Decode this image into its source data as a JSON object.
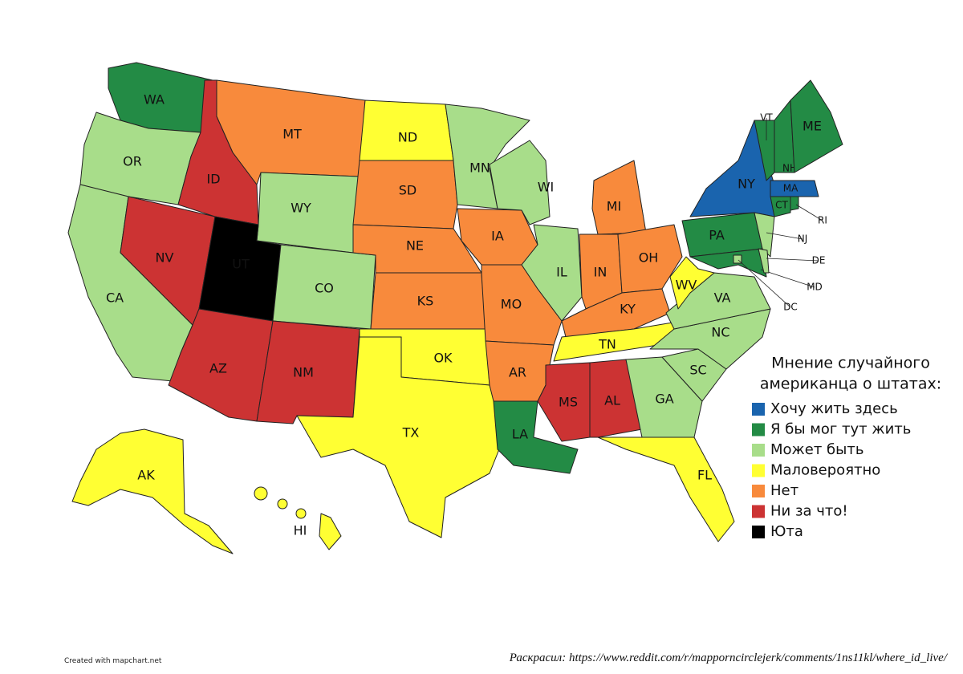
{
  "title_lines": [
    "Мнение случайного",
    "американца о штатах:"
  ],
  "legend": [
    {
      "label": "Хочу жить здесь",
      "color": "#1a64ae"
    },
    {
      "label": "Я бы мог тут жить",
      "color": "#238b45"
    },
    {
      "label": "Может быть",
      "color": "#a8dd8a"
    },
    {
      "label": "Маловероятно",
      "color": "#ffff33"
    },
    {
      "label": "Нет",
      "color": "#f88a3c"
    },
    {
      "label": "Ни за что!",
      "color": "#cc3333"
    },
    {
      "label": "Юта",
      "color": "#000000"
    }
  ],
  "states": [
    {
      "label": "WA",
      "category": 1
    },
    {
      "label": "OR",
      "category": 2
    },
    {
      "label": "CA",
      "category": 2
    },
    {
      "label": "NV",
      "category": 5
    },
    {
      "label": "ID",
      "category": 5
    },
    {
      "label": "MT",
      "category": 4
    },
    {
      "label": "WY",
      "category": 2
    },
    {
      "label": "UT",
      "category": 6
    },
    {
      "label": "CO",
      "category": 2
    },
    {
      "label": "AZ",
      "category": 5
    },
    {
      "label": "NM",
      "category": 5
    },
    {
      "label": "ND",
      "category": 3
    },
    {
      "label": "SD",
      "category": 4
    },
    {
      "label": "NE",
      "category": 4
    },
    {
      "label": "KS",
      "category": 4
    },
    {
      "label": "OK",
      "category": 3
    },
    {
      "label": "TX",
      "category": 3
    },
    {
      "label": "MN",
      "category": 2
    },
    {
      "label": "IA",
      "category": 4
    },
    {
      "label": "MO",
      "category": 4
    },
    {
      "label": "AR",
      "category": 4
    },
    {
      "label": "LA",
      "category": 1
    },
    {
      "label": "WI",
      "category": 2
    },
    {
      "label": "IL",
      "category": 2
    },
    {
      "label": "MI",
      "category": 4
    },
    {
      "label": "IN",
      "category": 4
    },
    {
      "label": "OH",
      "category": 4
    },
    {
      "label": "KY",
      "category": 4
    },
    {
      "label": "TN",
      "category": 3
    },
    {
      "label": "MS",
      "category": 5
    },
    {
      "label": "AL",
      "category": 5
    },
    {
      "label": "GA",
      "category": 2
    },
    {
      "label": "FL",
      "category": 3
    },
    {
      "label": "SC",
      "category": 2
    },
    {
      "label": "NC",
      "category": 2
    },
    {
      "label": "VA",
      "category": 2
    },
    {
      "label": "WV",
      "category": 3
    },
    {
      "label": "PA",
      "category": 1
    },
    {
      "label": "NY",
      "category": 0
    },
    {
      "label": "NJ",
      "category": 2
    },
    {
      "label": "MD",
      "category": 1
    },
    {
      "label": "DE",
      "category": 2
    },
    {
      "label": "DC",
      "category": 2
    },
    {
      "label": "VT",
      "category": 1
    },
    {
      "label": "NH",
      "category": 1
    },
    {
      "label": "ME",
      "category": 1
    },
    {
      "label": "MA",
      "category": 0
    },
    {
      "label": "CT",
      "category": 1
    },
    {
      "label": "RI",
      "category": 1
    },
    {
      "label": "AK",
      "category": 3
    },
    {
      "label": "HI",
      "category": 3
    }
  ],
  "credit": "Created with mapchart.net",
  "source": "Раскрасил: https://www.reddit.com/r/mapporncirclejerk/comments/1ns11kl/where_id_live/"
}
